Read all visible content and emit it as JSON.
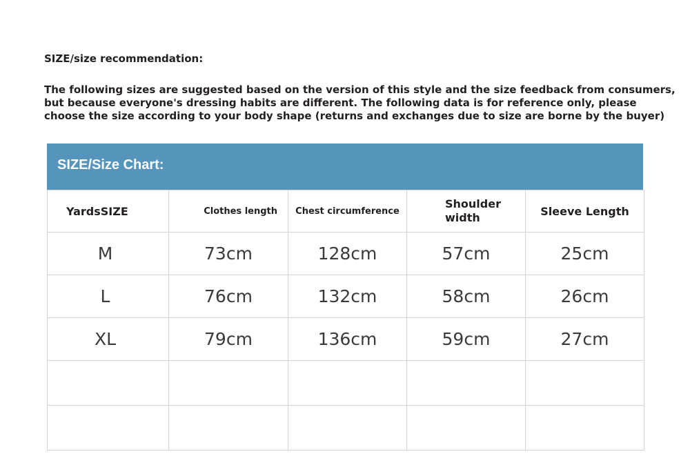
{
  "title": "SIZE/size recommendation:",
  "intro": [
    "The following sizes are suggested based on the version of this style and the size feedback from consumers,",
    "but because everyone's dressing habits are different. The following data is for reference only, please",
    "choose the size according to your body shape (returns and exchanges due to size are borne by the buyer)"
  ],
  "chart_title": "SIZE/Size Chart:",
  "header_color": "#5595bb",
  "columns": [
    "YardsSIZE",
    "Clothes length",
    "Chest circumference",
    "Shoulder width",
    "Sleeve Length"
  ],
  "rows": [
    [
      "M",
      "73cm",
      "128cm",
      "57cm",
      "25cm"
    ],
    [
      "L",
      "76cm",
      "132cm",
      "58cm",
      "26cm"
    ],
    [
      "XL",
      "79cm",
      "136cm",
      "59cm",
      "27cm"
    ]
  ]
}
